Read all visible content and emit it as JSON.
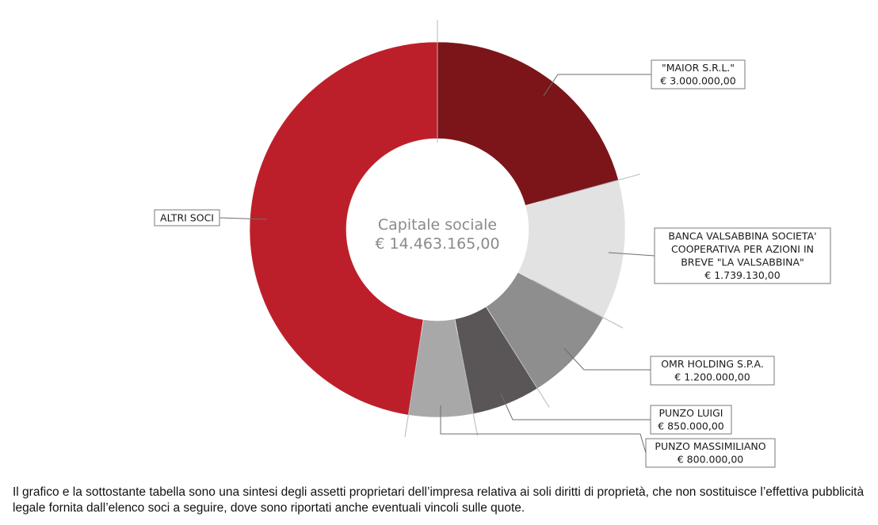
{
  "chart_data": {
    "type": "pie",
    "title": "Capitale sociale",
    "total_label": "€ 14.463.165,00",
    "currency": "€",
    "slices": [
      {
        "name": "\"MAIOR S.R.L.\"",
        "value": 3000000.0,
        "value_label": "€ 3.000.000,00",
        "label_lines": [
          "\"MAIOR S.R.L.\"",
          "€ 3.000.000,00"
        ],
        "color": "#7b1519"
      },
      {
        "name": "BANCA VALSABBINA SOCIETA' COOPERATIVA PER AZIONI IN BREVE \"LA VALSABBINA\"",
        "value": 1739130.0,
        "value_label": "€ 1.739.130,00",
        "label_lines": [
          "BANCA VALSABBINA SOCIETA'",
          "COOPERATIVA PER AZIONI IN",
          "BREVE \"LA VALSABBINA\"",
          "€ 1.739.130,00"
        ],
        "color": "#e2e2e2"
      },
      {
        "name": "OMR HOLDING S.P.A.",
        "value": 1200000.0,
        "value_label": "€ 1.200.000,00",
        "label_lines": [
          "OMR HOLDING S.P.A.",
          "€ 1.200.000,00"
        ],
        "color": "#8e8e8f"
      },
      {
        "name": "PUNZO LUIGI",
        "value": 850000.0,
        "value_label": "€ 850.000,00",
        "label_lines": [
          "PUNZO LUIGI",
          "€ 850.000,00"
        ],
        "color": "#5a5556"
      },
      {
        "name": "PUNZO MASSIMILIANO",
        "value": 800000.0,
        "value_label": "€ 800.000,00",
        "label_lines": [
          "PUNZO MASSIMILIANO",
          "€ 800.000,00"
        ],
        "color": "#a8a8a9"
      },
      {
        "name": "ALTRI SOCI",
        "value": 6874035.0,
        "value_label": "",
        "label_lines": [
          "ALTRI SOCI"
        ],
        "color": "#bd1f2a"
      }
    ]
  },
  "footnote": "Il grafico e la sottostante tabella sono una sintesi degli assetti proprietari dell’impresa relativa ai soli diritti di proprietà, che non sostituisce l’effettiva pubblicità legale fornita dall’elenco soci a seguire, dove sono riportati anche eventuali vincoli sulle quote."
}
